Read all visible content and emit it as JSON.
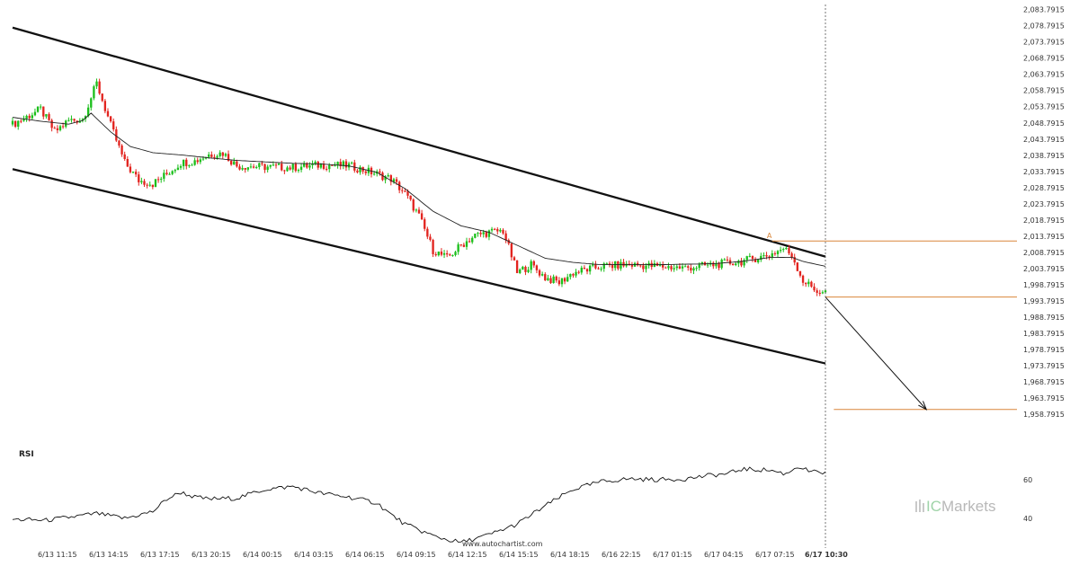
{
  "chart_data": {
    "type": "candlestick",
    "instrument_note": "",
    "y_axis": {
      "min": 1955.7915,
      "max": 2084.7915,
      "ticks": [
        "2,083.7915",
        "2,078.7915",
        "2,073.7915",
        "2,068.7915",
        "2,063.7915",
        "2,058.7915",
        "2,053.7915",
        "2,048.7915",
        "2,043.7915",
        "2,038.7915",
        "2,033.7915",
        "2,028.7915",
        "2,023.7915",
        "2,018.7915",
        "2,013.7915",
        "2,008.7915",
        "2,003.7915",
        "1,998.7915",
        "1,993.7915",
        "1,988.7915",
        "1,983.7915",
        "1,978.7915",
        "1,973.7915",
        "1,968.7915",
        "1,963.7915",
        "1,958.7915"
      ],
      "tick_values": [
        2083.7915,
        2078.7915,
        2073.7915,
        2068.7915,
        2063.7915,
        2058.7915,
        2053.7915,
        2048.7915,
        2043.7915,
        2038.7915,
        2033.7915,
        2028.7915,
        2023.7915,
        2018.7915,
        2013.7915,
        2008.7915,
        2003.7915,
        1998.7915,
        1993.7915,
        1988.7915,
        1983.7915,
        1978.7915,
        1973.7915,
        1968.7915,
        1963.7915,
        1958.7915
      ]
    },
    "x_axis": {
      "labels": [
        "6/13 11:15",
        "6/13 14:15",
        "6/13 17:15",
        "6/13 20:15",
        "6/14 00:15",
        "6/14 03:15",
        "6/14 06:15",
        "6/14 09:15",
        "6/14 12:15",
        "6/14 15:15",
        "6/14 18:15",
        "6/16 22:15",
        "6/17 01:15",
        "6/17 04:15",
        "6/17 07:15",
        "6/17 10:30"
      ],
      "highlight_label": "6/17 10:30"
    },
    "price_anchor_path": [
      [
        0,
        2048.3
      ],
      [
        10,
        2053.0
      ],
      [
        15,
        2046.0
      ],
      [
        20,
        2049.5
      ],
      [
        25,
        2050.0
      ],
      [
        30,
        2061.0
      ],
      [
        35,
        2048.0
      ],
      [
        40,
        2036.5
      ],
      [
        45,
        2031.0
      ],
      [
        50,
        2030.0
      ],
      [
        55,
        2033.0
      ],
      [
        60,
        2036.5
      ],
      [
        65,
        2037.0
      ],
      [
        70,
        2039.0
      ],
      [
        75,
        2039.5
      ],
      [
        80,
        2035.5
      ],
      [
        90,
        2035.2
      ],
      [
        100,
        2035.0
      ],
      [
        110,
        2035.8
      ],
      [
        120,
        2035.6
      ],
      [
        130,
        2033.0
      ],
      [
        135,
        2031.5
      ],
      [
        140,
        2027.0
      ],
      [
        145,
        2020.0
      ],
      [
        150,
        2009.5
      ],
      [
        155,
        2007.0
      ],
      [
        160,
        2011.0
      ],
      [
        165,
        2014.0
      ],
      [
        170,
        2015.0
      ],
      [
        175,
        2015.5
      ],
      [
        180,
        2002.5
      ],
      [
        185,
        2005.0
      ],
      [
        190,
        2001.0
      ],
      [
        195,
        1999.5
      ],
      [
        200,
        2002.5
      ],
      [
        210,
        2004.5
      ],
      [
        220,
        2005.0
      ],
      [
        230,
        2004.5
      ],
      [
        240,
        2004.0
      ],
      [
        250,
        2005.0
      ],
      [
        260,
        2006.0
      ],
      [
        270,
        2008.0
      ],
      [
        275,
        2010.0
      ],
      [
        278,
        2008.0
      ],
      [
        282,
        2000.0
      ],
      [
        286,
        1997.5
      ],
      [
        289,
        1996.0
      ],
      [
        290,
        1997.0
      ]
    ],
    "candles_total": 291,
    "moving_average_path": [
      [
        0,
        2050.5
      ],
      [
        10,
        2049.3
      ],
      [
        20,
        2048.4
      ],
      [
        25,
        2049.5
      ],
      [
        28,
        2051.8
      ],
      [
        35,
        2046.0
      ],
      [
        42,
        2041.5
      ],
      [
        50,
        2039.6
      ],
      [
        60,
        2038.9
      ],
      [
        70,
        2038.0
      ],
      [
        80,
        2037.2
      ],
      [
        100,
        2036.3
      ],
      [
        110,
        2036.1
      ],
      [
        120,
        2035.5
      ],
      [
        130,
        2033.5
      ],
      [
        140,
        2028.5
      ],
      [
        150,
        2021.5
      ],
      [
        160,
        2017.0
      ],
      [
        170,
        2015.0
      ],
      [
        180,
        2011.0
      ],
      [
        190,
        2007.0
      ],
      [
        200,
        2005.7
      ],
      [
        210,
        2005.0
      ],
      [
        230,
        2005.0
      ],
      [
        250,
        2005.3
      ],
      [
        260,
        2006.0
      ],
      [
        270,
        2007.2
      ],
      [
        278,
        2007.3
      ],
      [
        282,
        2006.0
      ],
      [
        290,
        2004.5
      ]
    ],
    "channel": {
      "upper": {
        "from": [
          0,
          2078.2
        ],
        "to": [
          290,
          2007.5
        ]
      },
      "lower": {
        "from": [
          0,
          2034.5
        ],
        "to": [
          290,
          1974.5
        ]
      }
    },
    "levels": [
      {
        "value": 2012.3,
        "from_index": 271,
        "color": "#d9863a"
      },
      {
        "value": 1995.0,
        "from_index": 290,
        "color": "#d9863a"
      },
      {
        "value": 1960.3,
        "from_index": 293,
        "color": "#d9863a"
      }
    ],
    "forecast_arrow": {
      "from": [
        290,
        1995.0
      ],
      "to": [
        326,
        1960.3
      ]
    },
    "pattern_marker": {
      "label": "A",
      "index": 270,
      "value": 2013.0
    },
    "rsi": {
      "label": "RSI",
      "ticks": [
        "60",
        "40"
      ],
      "tick_values": [
        60,
        40
      ],
      "range": [
        31,
        70
      ],
      "path": [
        [
          0,
          39.5
        ],
        [
          12,
          39.0
        ],
        [
          20,
          40.5
        ],
        [
          30,
          42.5
        ],
        [
          40,
          40.0
        ],
        [
          50,
          43.5
        ],
        [
          55,
          50.0
        ],
        [
          60,
          53.5
        ],
        [
          65,
          51.0
        ],
        [
          70,
          50.0
        ],
        [
          80,
          50.5
        ],
        [
          90,
          55.0
        ],
        [
          100,
          56.5
        ],
        [
          110,
          53.0
        ],
        [
          120,
          51.0
        ],
        [
          130,
          48.0
        ],
        [
          135,
          42.0
        ],
        [
          140,
          37.0
        ],
        [
          150,
          31.0
        ],
        [
          155,
          29.0
        ],
        [
          160,
          27.5
        ],
        [
          170,
          31.5
        ],
        [
          180,
          37.0
        ],
        [
          190,
          46.5
        ],
        [
          200,
          55.0
        ],
        [
          210,
          59.0
        ],
        [
          220,
          60.5
        ],
        [
          230,
          60.0
        ],
        [
          240,
          60.5
        ],
        [
          250,
          62.5
        ],
        [
          255,
          63.0
        ],
        [
          260,
          65.5
        ],
        [
          270,
          65.0
        ],
        [
          276,
          63.0
        ],
        [
          280,
          67.0
        ],
        [
          285,
          64.0
        ],
        [
          290,
          63.5
        ]
      ]
    },
    "colors": {
      "bull": "#1bbf1b",
      "bear": "#e2241f",
      "channel": "#111111",
      "moving_average": "#222222",
      "level": "#d9863a",
      "arrow": "#111111"
    },
    "grid": false
  },
  "watermark": {
    "ic": "IC",
    "markets": "Markets"
  },
  "source": "www.autochartist.com"
}
